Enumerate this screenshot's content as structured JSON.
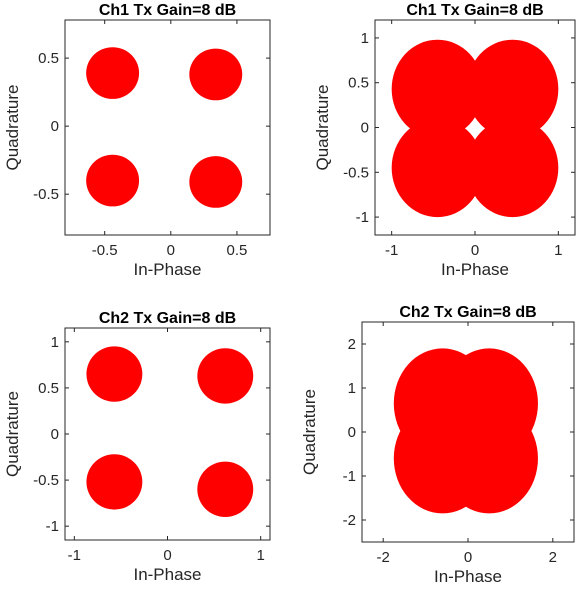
{
  "chart_data": [
    {
      "type": "scatter",
      "title": "Ch1 Tx Gain=8 dB",
      "xlabel": "In-Phase",
      "ylabel": "Quadrature",
      "xlim": [
        -0.8,
        0.75
      ],
      "ylim": [
        -0.8,
        0.78
      ],
      "xticks": [
        -0.5,
        0,
        0.5
      ],
      "xticklabels": [
        "-0.5",
        "0",
        "0.5"
      ],
      "yticks": [
        -0.5,
        0,
        0.5
      ],
      "yticklabels": [
        "-0.5",
        "0",
        "0.5"
      ],
      "grid": false,
      "color": "#ff0000",
      "clusters": [
        {
          "x": -0.44,
          "y": 0.39,
          "rx": 0.2,
          "ry": 0.19
        },
        {
          "x": 0.34,
          "y": 0.38,
          "rx": 0.2,
          "ry": 0.19
        },
        {
          "x": -0.44,
          "y": -0.4,
          "rx": 0.2,
          "ry": 0.19
        },
        {
          "x": 0.34,
          "y": -0.41,
          "rx": 0.2,
          "ry": 0.19
        }
      ]
    },
    {
      "type": "scatter",
      "title": "Ch1 Tx Gain=8 dB",
      "xlabel": "In-Phase",
      "ylabel": "Quadrature",
      "xlim": [
        -1.2,
        1.2
      ],
      "ylim": [
        -1.2,
        1.2
      ],
      "xticks": [
        -1,
        0,
        1
      ],
      "xticklabels": [
        "-1",
        "0",
        "1"
      ],
      "yticks": [
        -1,
        -0.5,
        0,
        0.5,
        1
      ],
      "yticklabels": [
        "-1",
        "-0.5",
        "0",
        "0.5",
        "1"
      ],
      "grid": false,
      "color": "#ff0000",
      "clusters": [
        {
          "x": -0.45,
          "y": 0.43,
          "rx": 0.55,
          "ry": 0.55
        },
        {
          "x": 0.45,
          "y": 0.43,
          "rx": 0.55,
          "ry": 0.55
        },
        {
          "x": -0.45,
          "y": -0.45,
          "rx": 0.55,
          "ry": 0.55
        },
        {
          "x": 0.45,
          "y": -0.45,
          "rx": 0.55,
          "ry": 0.55
        }
      ]
    },
    {
      "type": "scatter",
      "title": "Ch2 Tx Gain=8 dB",
      "xlabel": "In-Phase",
      "ylabel": "Quadrature",
      "xlim": [
        -1.1,
        1.1
      ],
      "ylim": [
        -1.15,
        1.15
      ],
      "xticks": [
        -1,
        0,
        1
      ],
      "xticklabels": [
        "-1",
        "0",
        "1"
      ],
      "yticks": [
        -1,
        -0.5,
        0,
        0.5,
        1
      ],
      "yticklabels": [
        "-1",
        "-0.5",
        "0",
        "0.5",
        "1"
      ],
      "grid": false,
      "color": "#ff0000",
      "clusters": [
        {
          "x": -0.57,
          "y": 0.65,
          "rx": 0.3,
          "ry": 0.3
        },
        {
          "x": 0.62,
          "y": 0.63,
          "rx": 0.3,
          "ry": 0.3
        },
        {
          "x": -0.57,
          "y": -0.52,
          "rx": 0.3,
          "ry": 0.3
        },
        {
          "x": 0.62,
          "y": -0.6,
          "rx": 0.3,
          "ry": 0.3
        }
      ]
    },
    {
      "type": "scatter",
      "title": "Ch2 Tx Gain=8 dB",
      "xlabel": "In-Phase",
      "ylabel": "Quadrature",
      "xlim": [
        -2.5,
        2.5
      ],
      "ylim": [
        -2.5,
        2.5
      ],
      "xticks": [
        -2,
        0,
        2
      ],
      "xticklabels": [
        "-2",
        "0",
        "2"
      ],
      "yticks": [
        -2,
        -1,
        0,
        1,
        2
      ],
      "yticklabels": [
        "-2",
        "-1",
        "0",
        "1",
        "2"
      ],
      "grid": false,
      "color": "#ff0000",
      "clusters": [
        {
          "x": -0.6,
          "y": 0.65,
          "rx": 1.15,
          "ry": 1.25
        },
        {
          "x": 0.5,
          "y": 0.65,
          "rx": 1.15,
          "ry": 1.25
        },
        {
          "x": -0.6,
          "y": -0.6,
          "rx": 1.15,
          "ry": 1.25
        },
        {
          "x": 0.5,
          "y": -0.6,
          "rx": 1.15,
          "ry": 1.25
        }
      ]
    }
  ]
}
